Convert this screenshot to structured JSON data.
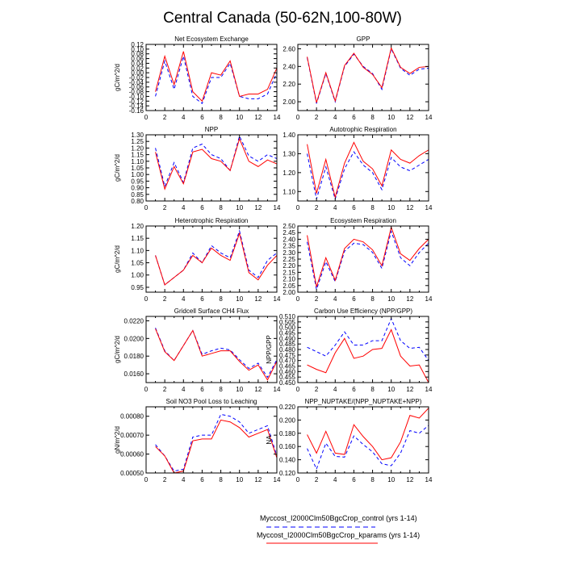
{
  "title": "Central Canada (50-62N,100-80W)",
  "colors": {
    "control": "#0000ff",
    "kparams": "#ff0000",
    "axis": "#000000"
  },
  "legend": [
    {
      "label": "Myccost_I2000Clm50BgcCrop_control (yrs 1-14)",
      "style": "dashed",
      "color": "#0000ff"
    },
    {
      "label": "Myccost_I2000Clm50BgcCrop_kparams (yrs 1-14)",
      "style": "solid",
      "color": "#ff0000"
    }
  ],
  "chart_data": [
    {
      "type": "line",
      "title": "Net Ecosystem Exchange",
      "ylabel": "gC/m^2/d",
      "xlabel": "",
      "xlim": [
        0,
        14
      ],
      "ylim": [
        -0.16,
        0.12
      ],
      "xticks": [
        0,
        2,
        4,
        6,
        8,
        10,
        12,
        14
      ],
      "yticks": [
        -0.16,
        -0.14,
        -0.12,
        -0.1,
        -0.08,
        -0.06,
        -0.04,
        -0.02,
        0.0,
        0.02,
        0.04,
        0.06,
        0.08,
        0.1,
        0.12
      ],
      "ytick_labels": [
        "-0.16",
        "-0.14",
        "-0.12",
        "-0.10",
        "-0.08",
        "-0.06",
        "-0.04",
        "-0.02",
        "0.00",
        "0.02",
        "0.04",
        "0.06",
        "0.08",
        "0.10",
        "0.12"
      ],
      "x": [
        1,
        2,
        3,
        4,
        5,
        6,
        7,
        8,
        9,
        10,
        11,
        12,
        13,
        14
      ],
      "series": [
        {
          "name": "Myccost_I2000Clm50BgcCrop_control",
          "style": "dashed",
          "values": [
            -0.1,
            0.05,
            -0.07,
            0.07,
            -0.1,
            -0.13,
            -0.02,
            -0.02,
            0.04,
            -0.1,
            -0.11,
            -0.11,
            -0.09,
            0.0
          ]
        },
        {
          "name": "Myccost_I2000Clm50BgcCrop_kparams",
          "style": "solid",
          "values": [
            -0.08,
            0.07,
            -0.05,
            0.09,
            -0.08,
            -0.12,
            0.0,
            -0.01,
            0.05,
            -0.1,
            -0.09,
            -0.09,
            -0.07,
            0.02
          ]
        }
      ]
    },
    {
      "type": "line",
      "title": "GPP",
      "ylabel": "",
      "xlabel": "",
      "xlim": [
        0,
        14
      ],
      "ylim": [
        1.9,
        2.65
      ],
      "xticks": [
        0,
        2,
        4,
        6,
        8,
        10,
        12,
        14
      ],
      "yticks": [
        2.0,
        2.2,
        2.4,
        2.6
      ],
      "ytick_labels": [
        "2.00",
        "2.20",
        "2.40",
        "2.60"
      ],
      "x": [
        1,
        2,
        3,
        4,
        5,
        6,
        7,
        8,
        9,
        10,
        11,
        12,
        13,
        14
      ],
      "series": [
        {
          "name": "Myccost_I2000Clm50BgcCrop_control",
          "style": "dashed",
          "values": [
            2.5,
            1.98,
            2.32,
            2.0,
            2.4,
            2.54,
            2.4,
            2.32,
            2.14,
            2.6,
            2.38,
            2.3,
            2.37,
            2.38
          ]
        },
        {
          "name": "Myccost_I2000Clm50BgcCrop_kparams",
          "style": "solid",
          "values": [
            2.51,
            1.99,
            2.33,
            2.01,
            2.41,
            2.55,
            2.39,
            2.31,
            2.16,
            2.61,
            2.39,
            2.32,
            2.39,
            2.4
          ]
        }
      ]
    },
    {
      "type": "line",
      "title": "NPP",
      "ylabel": "gC/m^2/d",
      "xlabel": "",
      "xlim": [
        0,
        14
      ],
      "ylim": [
        0.8,
        1.3
      ],
      "xticks": [
        0,
        2,
        4,
        6,
        8,
        10,
        12,
        14
      ],
      "yticks": [
        0.8,
        0.85,
        0.9,
        0.95,
        1.0,
        1.05,
        1.1,
        1.15,
        1.2,
        1.25,
        1.3
      ],
      "ytick_labels": [
        "0.80",
        "0.85",
        "0.90",
        "0.95",
        "1.00",
        "1.05",
        "1.10",
        "1.15",
        "1.20",
        "1.25",
        "1.30"
      ],
      "x": [
        1,
        2,
        3,
        4,
        5,
        6,
        7,
        8,
        9,
        10,
        11,
        12,
        13,
        14
      ],
      "series": [
        {
          "name": "Myccost_I2000Clm50BgcCrop_control",
          "style": "dashed",
          "values": [
            1.2,
            0.91,
            1.09,
            0.94,
            1.2,
            1.23,
            1.15,
            1.12,
            1.03,
            1.29,
            1.14,
            1.1,
            1.15,
            1.12
          ]
        },
        {
          "name": "Myccost_I2000Clm50BgcCrop_kparams",
          "style": "solid",
          "values": [
            1.17,
            0.89,
            1.06,
            0.93,
            1.17,
            1.19,
            1.12,
            1.1,
            1.03,
            1.27,
            1.1,
            1.06,
            1.11,
            1.08
          ]
        }
      ]
    },
    {
      "type": "line",
      "title": "Autotrophic Respiration",
      "ylabel": "",
      "xlabel": "",
      "xlim": [
        0,
        14
      ],
      "ylim": [
        1.05,
        1.4
      ],
      "xticks": [
        0,
        2,
        4,
        6,
        8,
        10,
        12,
        14
      ],
      "yticks": [
        1.1,
        1.2,
        1.3,
        1.4
      ],
      "ytick_labels": [
        "1.10",
        "1.20",
        "1.30",
        "1.40"
      ],
      "x": [
        1,
        2,
        3,
        4,
        5,
        6,
        7,
        8,
        9,
        10,
        11,
        12,
        13,
        14
      ],
      "series": [
        {
          "name": "Myccost_I2000Clm50BgcCrop_control",
          "style": "dashed",
          "values": [
            1.3,
            1.06,
            1.23,
            1.06,
            1.22,
            1.31,
            1.24,
            1.2,
            1.11,
            1.28,
            1.23,
            1.21,
            1.24,
            1.27
          ]
        },
        {
          "name": "Myccost_I2000Clm50BgcCrop_kparams",
          "style": "solid",
          "values": [
            1.35,
            1.09,
            1.27,
            1.07,
            1.25,
            1.36,
            1.26,
            1.22,
            1.13,
            1.32,
            1.27,
            1.25,
            1.29,
            1.32
          ]
        }
      ]
    },
    {
      "type": "line",
      "title": "Heterotrophic Respiration",
      "ylabel": "gC/m^2/d",
      "xlabel": "",
      "xlim": [
        0,
        14
      ],
      "ylim": [
        0.93,
        1.2
      ],
      "xticks": [
        0,
        2,
        4,
        6,
        8,
        10,
        12,
        14
      ],
      "yticks": [
        0.95,
        1.0,
        1.05,
        1.1,
        1.15,
        1.2
      ],
      "ytick_labels": [
        "0.95",
        "1.00",
        "1.05",
        "1.10",
        "1.15",
        "1.20"
      ],
      "x": [
        1,
        2,
        3,
        4,
        5,
        6,
        7,
        8,
        9,
        10,
        11,
        12,
        13,
        14
      ],
      "series": [
        {
          "name": "Myccost_I2000Clm50BgcCrop_control",
          "style": "dashed",
          "values": [
            1.08,
            0.96,
            0.99,
            1.02,
            1.09,
            1.05,
            1.12,
            1.09,
            1.07,
            1.18,
            1.02,
            0.99,
            1.06,
            1.09
          ]
        },
        {
          "name": "Myccost_I2000Clm50BgcCrop_kparams",
          "style": "solid",
          "values": [
            1.08,
            0.96,
            0.99,
            1.02,
            1.08,
            1.05,
            1.11,
            1.08,
            1.06,
            1.17,
            1.01,
            0.98,
            1.04,
            1.08
          ]
        }
      ]
    },
    {
      "type": "line",
      "title": "Ecosystem Respiration",
      "ylabel": "",
      "xlabel": "",
      "xlim": [
        0,
        14
      ],
      "ylim": [
        2.0,
        2.5
      ],
      "xticks": [
        0,
        2,
        4,
        6,
        8,
        10,
        12,
        14
      ],
      "yticks": [
        2.0,
        2.05,
        2.1,
        2.15,
        2.2,
        2.25,
        2.3,
        2.35,
        2.4,
        2.45,
        2.5
      ],
      "ytick_labels": [
        "2.00",
        "2.05",
        "2.10",
        "2.15",
        "2.20",
        "2.25",
        "2.30",
        "2.35",
        "2.40",
        "2.45",
        "2.50"
      ],
      "x": [
        1,
        2,
        3,
        4,
        5,
        6,
        7,
        8,
        9,
        10,
        11,
        12,
        13,
        14
      ],
      "series": [
        {
          "name": "Myccost_I2000Clm50BgcCrop_control",
          "style": "dashed",
          "values": [
            2.38,
            2.02,
            2.23,
            2.08,
            2.31,
            2.37,
            2.36,
            2.3,
            2.18,
            2.46,
            2.26,
            2.2,
            2.3,
            2.37
          ]
        },
        {
          "name": "Myccost_I2000Clm50BgcCrop_kparams",
          "style": "solid",
          "values": [
            2.43,
            2.04,
            2.26,
            2.09,
            2.33,
            2.4,
            2.38,
            2.32,
            2.2,
            2.49,
            2.29,
            2.24,
            2.33,
            2.4
          ]
        }
      ]
    },
    {
      "type": "line",
      "title": "Gridcell Surface CH4 Flux",
      "ylabel": "gC/m^2/d",
      "xlabel": "",
      "xlim": [
        0,
        14
      ],
      "ylim": [
        0.015,
        0.0225
      ],
      "xticks": [
        0,
        2,
        4,
        6,
        8,
        10,
        12,
        14
      ],
      "yticks": [
        0.016,
        0.018,
        0.02,
        0.022
      ],
      "ytick_labels": [
        "0.0160",
        "0.0180",
        "0.0200",
        "0.0220"
      ],
      "x": [
        1,
        2,
        3,
        4,
        5,
        6,
        7,
        8,
        9,
        10,
        11,
        12,
        13,
        14
      ],
      "series": [
        {
          "name": "Myccost_I2000Clm50BgcCrop_control",
          "style": "dashed",
          "values": [
            0.0212,
            0.0186,
            0.0175,
            0.0192,
            0.0209,
            0.0182,
            0.0186,
            0.0189,
            0.0187,
            0.0176,
            0.0166,
            0.0172,
            0.0156,
            0.0176
          ]
        },
        {
          "name": "Myccost_I2000Clm50BgcCrop_kparams",
          "style": "solid",
          "values": [
            0.0211,
            0.0185,
            0.0175,
            0.0192,
            0.0209,
            0.018,
            0.0183,
            0.0186,
            0.0186,
            0.0174,
            0.0164,
            0.017,
            0.0153,
            0.0174
          ]
        }
      ]
    },
    {
      "type": "line",
      "title": "Carbon Use Efficiency (NPP/GPP)",
      "ylabel": "NPP/GPP",
      "xlabel": "",
      "xlim": [
        0,
        14
      ],
      "ylim": [
        0.45,
        0.51
      ],
      "xticks": [
        0,
        2,
        4,
        6,
        8,
        10,
        12,
        14
      ],
      "yticks": [
        0.45,
        0.455,
        0.46,
        0.465,
        0.47,
        0.475,
        0.48,
        0.485,
        0.49,
        0.495,
        0.5,
        0.505,
        0.51
      ],
      "ytick_labels": [
        "0.450",
        "0.455",
        "0.460",
        "0.465",
        "0.470",
        "0.475",
        "0.480",
        "0.485",
        "0.490",
        "0.495",
        "0.500",
        "0.505",
        "0.510"
      ],
      "x": [
        1,
        2,
        3,
        4,
        5,
        6,
        7,
        8,
        9,
        10,
        11,
        12,
        13,
        14
      ],
      "series": [
        {
          "name": "Myccost_I2000Clm50BgcCrop_control",
          "style": "dashed",
          "values": [
            0.482,
            0.478,
            0.474,
            0.484,
            0.496,
            0.484,
            0.484,
            0.488,
            0.488,
            0.508,
            0.488,
            0.481,
            0.482,
            0.47
          ]
        },
        {
          "name": "Myccost_I2000Clm50BgcCrop_kparams",
          "style": "solid",
          "values": [
            0.466,
            0.462,
            0.459,
            0.477,
            0.49,
            0.472,
            0.474,
            0.48,
            0.481,
            0.498,
            0.474,
            0.465,
            0.466,
            0.45
          ]
        }
      ]
    },
    {
      "type": "line",
      "title": "Soil NO3 Pool Loss to Leaching",
      "ylabel": "gN/m^2/d",
      "xlabel": "",
      "xlim": [
        0,
        14
      ],
      "ylim": [
        0.0005,
        0.00085
      ],
      "xticks": [
        0,
        2,
        4,
        6,
        8,
        10,
        12,
        14
      ],
      "yticks": [
        0.0005,
        0.0006,
        0.0007,
        0.0008
      ],
      "ytick_labels": [
        "0.00050",
        "0.00060",
        "0.00070",
        "0.00080"
      ],
      "x": [
        1,
        2,
        3,
        4,
        5,
        6,
        7,
        8,
        9,
        10,
        11,
        12,
        13,
        14
      ],
      "series": [
        {
          "name": "Myccost_I2000Clm50BgcCrop_control",
          "style": "dashed",
          "values": [
            0.00065,
            0.00059,
            0.00051,
            0.00052,
            0.00069,
            0.0007,
            0.0007,
            0.00081,
            0.0008,
            0.00077,
            0.00071,
            0.00073,
            0.00075,
            0.00059
          ]
        },
        {
          "name": "Myccost_I2000Clm50BgcCrop_kparams",
          "style": "solid",
          "values": [
            0.00064,
            0.00059,
            0.0005,
            0.00051,
            0.00067,
            0.00068,
            0.00068,
            0.00078,
            0.00077,
            0.00074,
            0.00069,
            0.00071,
            0.00073,
            0.00058
          ]
        }
      ]
    },
    {
      "type": "line",
      "title": "NPP_NUPTAKE/(NPP_NUPTAKE+NPP)",
      "ylabel": "NA",
      "xlabel": "",
      "xlim": [
        0,
        14
      ],
      "ylim": [
        0.12,
        0.22
      ],
      "xticks": [
        0,
        2,
        4,
        6,
        8,
        10,
        12,
        14
      ],
      "yticks": [
        0.12,
        0.14,
        0.16,
        0.18,
        0.2,
        0.22
      ],
      "ytick_labels": [
        "0.120",
        "0.140",
        "0.160",
        "0.180",
        "0.200",
        "0.220"
      ],
      "x": [
        1,
        2,
        3,
        4,
        5,
        6,
        7,
        8,
        9,
        10,
        11,
        12,
        13,
        14
      ],
      "series": [
        {
          "name": "Myccost_I2000Clm50BgcCrop_control",
          "style": "dashed",
          "values": [
            0.157,
            0.126,
            0.165,
            0.145,
            0.144,
            0.176,
            0.163,
            0.152,
            0.134,
            0.131,
            0.15,
            0.184,
            0.18,
            0.192
          ]
        },
        {
          "name": "Myccost_I2000Clm50BgcCrop_kparams",
          "style": "solid",
          "values": [
            0.178,
            0.15,
            0.183,
            0.15,
            0.148,
            0.193,
            0.175,
            0.16,
            0.14,
            0.143,
            0.167,
            0.207,
            0.203,
            0.218
          ]
        }
      ]
    }
  ]
}
